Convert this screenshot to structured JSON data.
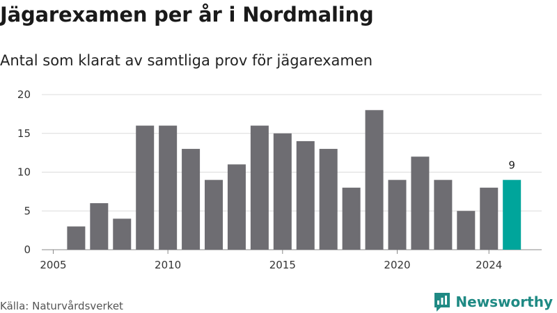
{
  "header": {
    "title": "Jägarexamen per år i Nordmaling",
    "subtitle": "Antal som klarat av samtliga prov för jägarexamen"
  },
  "footer": {
    "source": "Källa: Naturvårdsverket",
    "brand": "Newsworthy",
    "brand_color": "#1f8a84"
  },
  "chart_data": {
    "type": "bar",
    "x": [
      2006,
      2007,
      2008,
      2009,
      2010,
      2011,
      2012,
      2013,
      2014,
      2015,
      2016,
      2017,
      2018,
      2019,
      2020,
      2021,
      2022,
      2023,
      2024,
      2025
    ],
    "values": [
      3,
      6,
      4,
      16,
      16,
      13,
      9,
      11,
      16,
      15,
      14,
      13,
      8,
      18,
      9,
      12,
      9,
      5,
      8,
      9
    ],
    "xticks": [
      2005,
      2010,
      2015,
      2020,
      2024
    ],
    "yticks": [
      0,
      5,
      10,
      15,
      20
    ],
    "ylim": [
      0,
      20
    ],
    "grid": true,
    "bar_color": "#6e6d72",
    "highlight_color": "#00a59b",
    "highlight_index": 19,
    "highlight_label": "9"
  }
}
